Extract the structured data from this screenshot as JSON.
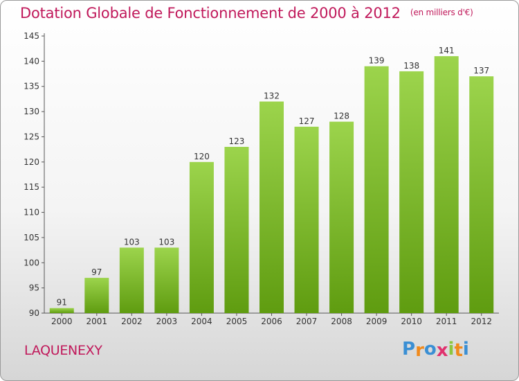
{
  "chart_data": {
    "type": "bar",
    "title": "Dotation Globale de Fonctionnement de 2000 à 2012",
    "unit_label": "(en milliers d'€)",
    "categories": [
      "2000",
      "2001",
      "2002",
      "2003",
      "2004",
      "2005",
      "2006",
      "2007",
      "2008",
      "2009",
      "2010",
      "2011",
      "2012"
    ],
    "values": [
      91,
      97,
      103,
      103,
      120,
      123,
      132,
      127,
      128,
      139,
      138,
      141,
      137
    ],
    "ylim": [
      90,
      145
    ],
    "yticks": [
      90,
      95,
      100,
      105,
      110,
      115,
      120,
      125,
      130,
      135,
      140,
      145
    ],
    "grid": false,
    "colors": {
      "bar_light": "#9cd44c",
      "bar_dark": "#5f9c10",
      "title": "#c0185a"
    }
  },
  "commune": "LAQUENEXY",
  "logo": {
    "letters": [
      "P",
      "r",
      "o",
      "x",
      "i",
      "t",
      "i"
    ],
    "colors": [
      "#3a8fd4",
      "#f08a1c",
      "#3a8fd4",
      "#e0326e",
      "#8cc63f",
      "#f08a1c",
      "#3a8fd4"
    ]
  }
}
